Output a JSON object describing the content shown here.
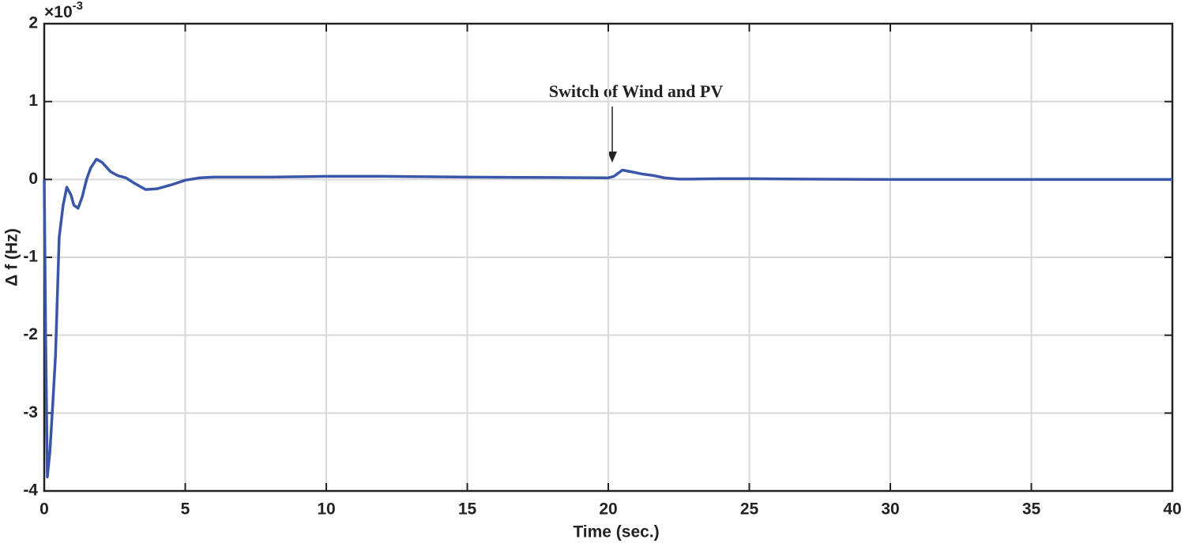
{
  "chart_data": {
    "type": "line",
    "y_label": "Δ f (Hz)",
    "x_label": "Time (sec.)",
    "y_exponent": {
      "base": "×10",
      "power": "-3"
    },
    "annotation": "Switch of Wind and PV",
    "color": "#3a56a8",
    "x": [
      0,
      0.05,
      0.11,
      0.2,
      0.3,
      0.4,
      0.53,
      0.67,
      0.8,
      0.95,
      1.05,
      1.2,
      1.35,
      1.5,
      1.65,
      1.85,
      2.05,
      2.35,
      2.6,
      2.9,
      3.2,
      3.6,
      4.0,
      4.5,
      5.0,
      5.5,
      6,
      7,
      8,
      10,
      12,
      15,
      18,
      20,
      20.2,
      20.5,
      20.8,
      21.2,
      21.6,
      22.0,
      22.5,
      23,
      24,
      25,
      27,
      30,
      35,
      40
    ],
    "values": [
      0,
      -2.0,
      -3.82,
      -3.5,
      -2.9,
      -2.26,
      -0.74,
      -0.33,
      -0.1,
      -0.2,
      -0.33,
      -0.37,
      -0.22,
      0.0,
      0.15,
      0.26,
      0.22,
      0.1,
      0.05,
      0.02,
      -0.05,
      -0.13,
      -0.12,
      -0.07,
      -0.01,
      0.02,
      0.03,
      0.03,
      0.03,
      0.04,
      0.04,
      0.03,
      0.025,
      0.02,
      0.04,
      0.12,
      0.1,
      0.07,
      0.05,
      0.02,
      0.005,
      0.005,
      0.01,
      0.01,
      0.005,
      0.0,
      0.0,
      0.0
    ],
    "xlim": [
      0,
      40
    ],
    "xticks": [
      0,
      5,
      10,
      15,
      20,
      25,
      30,
      35,
      40
    ],
    "ylim": [
      -4,
      2
    ],
    "yticks": [
      -4,
      -3,
      -2,
      -1,
      0,
      1,
      2
    ],
    "grid": true
  }
}
